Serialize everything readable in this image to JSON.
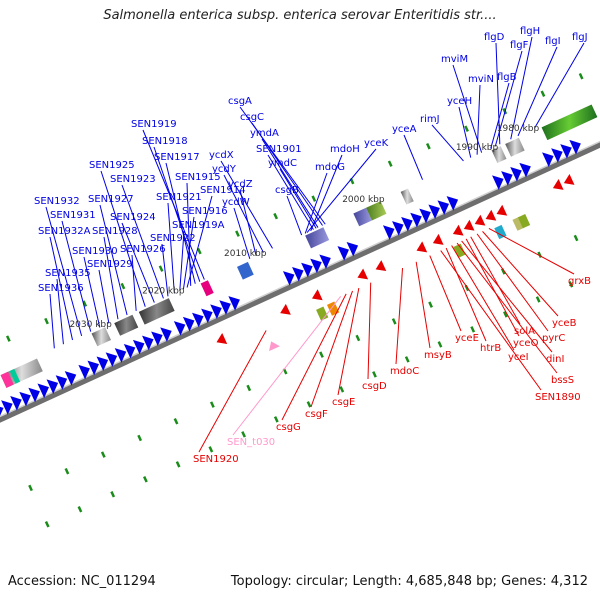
{
  "title": "Salmonella enterica subsp. enterica serovar Enteritidis str....",
  "footer": {
    "accession": "Accession: NC_011294",
    "summary": "Topology: circular; Length: 4,685,848 bp; Genes: 4,312"
  },
  "colors": {
    "forward_strand": "#0000e6",
    "reverse_strand": "#e60000",
    "backbone": "#8c8c8c",
    "skew_marks": "#1a8c1a",
    "trna": "#ff99cc"
  },
  "tick_labels": [
    "1980 kbp",
    "1990 kbp",
    "2000 kbp",
    "2010 kbp",
    "2020 kbp",
    "2030 kbp"
  ],
  "forward_gene_labels": [
    "flgJ",
    "flgI",
    "flgH",
    "flgD",
    "flgF",
    "flgB",
    "mviM",
    "mviN",
    "yceH",
    "rimJ",
    "yceA",
    "csgA",
    "csgC",
    "ymdA",
    "ymdC",
    "SEN1901",
    "mdoH",
    "yceK",
    "mdoG",
    "csgB",
    "ycdX",
    "ycdY",
    "ycdZ",
    "ycdW",
    "SEN1919",
    "SEN1918",
    "SEN1917",
    "SEN1915",
    "SEN1914",
    "SEN1916",
    "SEN1919A",
    "SEN1921",
    "SEN1922",
    "SEN1923",
    "SEN1924",
    "SEN1925",
    "SEN1926",
    "SEN1927",
    "SEN1928",
    "SEN1929",
    "SEN1930",
    "SEN1931",
    "SEN1932",
    "SEN1932A",
    "SEN1935",
    "SEN1936"
  ],
  "reverse_gene_labels": [
    "grxB",
    "yceB",
    "pyrC",
    "solA",
    "yceO",
    "dinI",
    "bssS",
    "yceI",
    "htrB",
    "SEN1890",
    "yceE",
    "msyB",
    "mdoC",
    "csgD",
    "csgE",
    "csgF",
    "csgG",
    "SEN_t030",
    "SEN1920"
  ]
}
